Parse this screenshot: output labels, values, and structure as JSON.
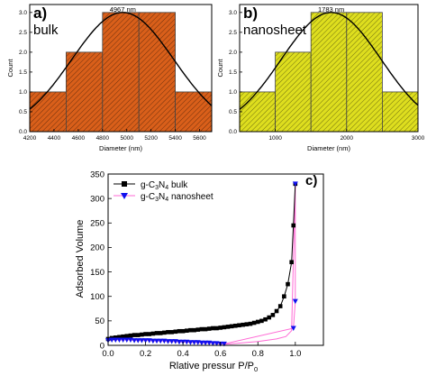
{
  "colors": {
    "bulk_fill": "#d95f1a",
    "nanosheet_fill": "#dede1e",
    "bulk_series": "#000000",
    "nanosheet_series": "#1010ee",
    "nanosheet_line": "#ff6ad5",
    "fit_curve": "#000000"
  },
  "chart_data": [
    {
      "type": "bar",
      "panel_label": "a)",
      "sample_label": "bulk",
      "peak_annotation": "4967 nm",
      "xlabel": "Diameter (nm)",
      "ylabel": "Count",
      "xlim": [
        4200,
        5700
      ],
      "ylim": [
        0,
        3.2
      ],
      "xticks": [
        "4200",
        "4400",
        "4600",
        "4800",
        "5000",
        "5200",
        "5400",
        "5600"
      ],
      "yticks": [
        "0.0",
        "0.5",
        "1.0",
        "1.5",
        "2.0",
        "2.5",
        "3.0"
      ],
      "bins": [
        {
          "start": 4200,
          "end": 4500,
          "count": 1
        },
        {
          "start": 4500,
          "end": 4800,
          "count": 2
        },
        {
          "start": 4800,
          "end": 5100,
          "count": 3
        },
        {
          "start": 5100,
          "end": 5400,
          "count": 3
        },
        {
          "start": 5400,
          "end": 5700,
          "count": 1
        }
      ],
      "fit": {
        "type": "gaussian",
        "center": 4967,
        "sigma": 420,
        "amplitude": 3.0
      },
      "grid": false
    },
    {
      "type": "bar",
      "panel_label": "b)",
      "sample_label": "nanosheet",
      "peak_annotation": "1783 nm",
      "xlabel": "Diameter (nm)",
      "ylabel": "Count",
      "xlim": [
        500,
        3000
      ],
      "ylim": [
        0,
        3.2
      ],
      "xticks": [
        "1000",
        "2000",
        "3000"
      ],
      "yticks": [
        "0.0",
        "0.5",
        "1.0",
        "1.5",
        "2.0",
        "2.5",
        "3.0"
      ],
      "bins": [
        {
          "start": 500,
          "end": 1000,
          "count": 1
        },
        {
          "start": 1000,
          "end": 1500,
          "count": 2
        },
        {
          "start": 1500,
          "end": 2000,
          "count": 3
        },
        {
          "start": 2000,
          "end": 2500,
          "count": 3
        },
        {
          "start": 2500,
          "end": 3000,
          "count": 1
        }
      ],
      "fit": {
        "type": "gaussian",
        "center": 1783,
        "sigma": 700,
        "amplitude": 3.0
      },
      "grid": false
    },
    {
      "type": "line",
      "panel_label": "c)",
      "xlabel": "Rlative pressur P/P",
      "xlabel_sub": "0",
      "ylabel": "Adsorbed Volume",
      "xlim": [
        0,
        1.15
      ],
      "ylim": [
        0,
        350
      ],
      "xticks": [
        0.0,
        0.2,
        0.4,
        0.6,
        0.8,
        1.0
      ],
      "xtick_labels": [
        "0.0",
        "0.2",
        "0.4",
        "0.6",
        "0.8",
        "1.0"
      ],
      "yticks": [
        0,
        50,
        100,
        150,
        200,
        250,
        300,
        350
      ],
      "ytick_labels": [
        "0",
        "50",
        "100",
        "150",
        "200",
        "250",
        "300",
        "350"
      ],
      "legend_position": "top-left",
      "grid": false,
      "series": [
        {
          "name": "g-C",
          "name_sub1": "3",
          "name_mid": "N",
          "name_sub2": "4",
          "name_end": " bulk",
          "marker": "square",
          "x": [
            0.0,
            0.02,
            0.04,
            0.06,
            0.08,
            0.1,
            0.12,
            0.14,
            0.16,
            0.18,
            0.2,
            0.22,
            0.24,
            0.26,
            0.28,
            0.3,
            0.32,
            0.34,
            0.36,
            0.38,
            0.4,
            0.42,
            0.44,
            0.46,
            0.48,
            0.5,
            0.52,
            0.54,
            0.56,
            0.58,
            0.6,
            0.62,
            0.64,
            0.66,
            0.68,
            0.7,
            0.72,
            0.74,
            0.76,
            0.78,
            0.8,
            0.82,
            0.84,
            0.86,
            0.88,
            0.9,
            0.92,
            0.94,
            0.96,
            0.98,
            0.99,
            1.0
          ],
          "y": [
            13,
            15,
            16,
            17,
            18,
            19,
            20,
            21,
            21,
            22,
            23,
            23,
            24,
            25,
            25,
            26,
            27,
            27,
            28,
            29,
            29,
            30,
            31,
            31,
            32,
            33,
            33,
            34,
            35,
            35,
            36,
            37,
            38,
            39,
            40,
            41,
            42,
            43,
            44,
            46,
            48,
            50,
            53,
            57,
            62,
            70,
            80,
            100,
            125,
            170,
            245,
            330
          ]
        },
        {
          "name": "g-C",
          "name_sub1": "3",
          "name_mid": "N",
          "name_sub2": "4",
          "name_end": " nanosheet",
          "marker": "triangle-down",
          "x": [
            0.0,
            0.02,
            0.04,
            0.06,
            0.08,
            0.1,
            0.12,
            0.14,
            0.16,
            0.18,
            0.2,
            0.22,
            0.24,
            0.26,
            0.28,
            0.3,
            0.32,
            0.34,
            0.36,
            0.38,
            0.4,
            0.42,
            0.44,
            0.46,
            0.48,
            0.5,
            0.52,
            0.54,
            0.56,
            0.58,
            0.6,
            0.62,
            0.99,
            1.0,
            1.0
          ],
          "y": [
            10,
            11,
            11,
            11,
            11,
            11,
            11,
            10,
            10,
            10,
            10,
            10,
            9,
            9,
            9,
            9,
            8,
            8,
            8,
            7,
            7,
            7,
            6,
            6,
            6,
            5,
            5,
            5,
            4,
            4,
            3,
            3,
            35,
            90,
            330
          ],
          "return_line": {
            "x": [
              0.62,
              0.8,
              0.9,
              0.95,
              0.98,
              1.0
            ],
            "y": [
              2,
              8,
              13,
              18,
              30,
              330
            ]
          }
        }
      ]
    }
  ]
}
